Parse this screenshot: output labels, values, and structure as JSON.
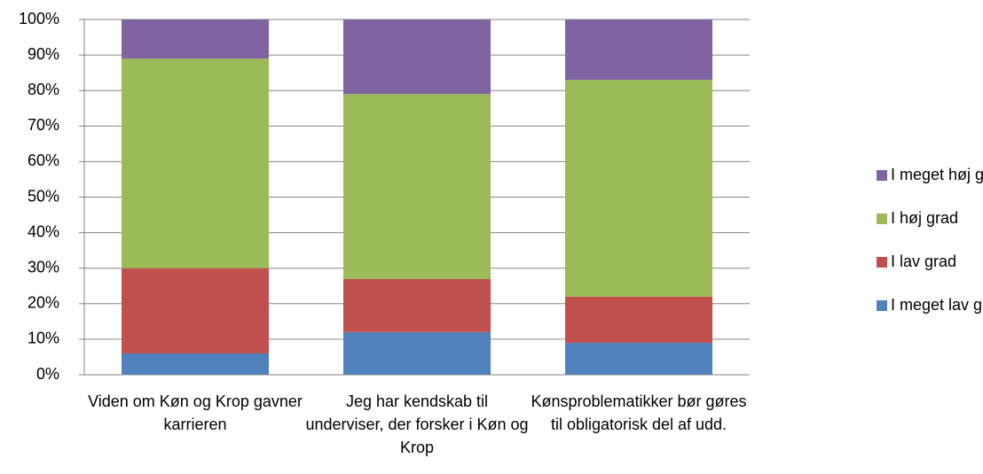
{
  "chart_data": {
    "type": "stacked_bar",
    "categories": [
      "Viden om Køn og Krop gavner karrieren",
      "Jeg har kendskab til underviser, der forsker i Køn og Krop",
      "Kønsproblematikker bør gøres til obligatorisk del af udd."
    ],
    "series": [
      {
        "name": "I meget lav grad",
        "color": "#4f81bd",
        "values": [
          6,
          12,
          9
        ]
      },
      {
        "name": "I lav grad",
        "color": "#c0504d",
        "values": [
          24,
          15,
          13
        ]
      },
      {
        "name": "I høj grad",
        "color": "#9bbb59",
        "values": [
          59,
          52,
          61
        ]
      },
      {
        "name": "I meget høj grad",
        "color": "#8064a2",
        "values": [
          11,
          21,
          17
        ]
      }
    ],
    "ylim": [
      0,
      100
    ],
    "yticks": [
      {
        "value": 0,
        "label": "0%"
      },
      {
        "value": 10,
        "label": "10%"
      },
      {
        "value": 20,
        "label": "20%"
      },
      {
        "value": 30,
        "label": "30%"
      },
      {
        "value": 40,
        "label": "40%"
      },
      {
        "value": 50,
        "label": "50%"
      },
      {
        "value": 60,
        "label": "60%"
      },
      {
        "value": 70,
        "label": "70%"
      },
      {
        "value": 80,
        "label": "80%"
      },
      {
        "value": 90,
        "label": "90%"
      },
      {
        "value": 100,
        "label": "100%"
      }
    ],
    "grid": true,
    "legend": "right"
  }
}
